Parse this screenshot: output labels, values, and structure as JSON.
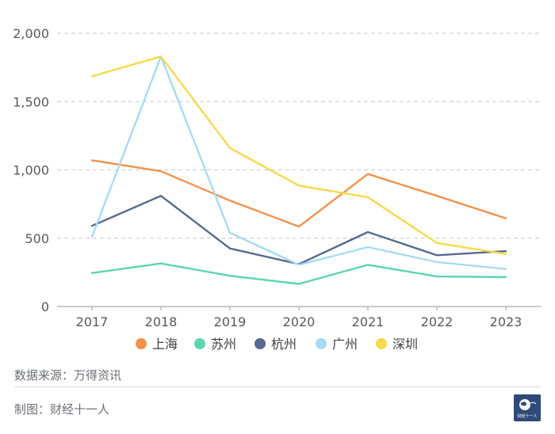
{
  "chart_data": {
    "type": "line",
    "x": [
      "2017",
      "2018",
      "2019",
      "2020",
      "2021",
      "2022",
      "2023"
    ],
    "ylim": [
      0,
      2000
    ],
    "y_ticks": [
      "0",
      "500",
      "1,000",
      "1,500",
      "2,000"
    ],
    "y_tick_values": [
      0,
      500,
      1000,
      1500,
      2000
    ],
    "grid": true,
    "legend_position": "bottom",
    "series": [
      {
        "name": "上海",
        "color": "#f4924a",
        "values": [
          1070,
          990,
          775,
          585,
          970,
          810,
          645
        ]
      },
      {
        "name": "苏州",
        "color": "#5dd6aa",
        "values": [
          245,
          315,
          225,
          165,
          305,
          220,
          215
        ]
      },
      {
        "name": "杭州",
        "color": "#566a90",
        "values": [
          590,
          810,
          425,
          310,
          545,
          375,
          405
        ]
      },
      {
        "name": "广州",
        "color": "#a6dcf4",
        "values": [
          510,
          1830,
          540,
          305,
          435,
          325,
          275
        ]
      },
      {
        "name": "深圳",
        "color": "#f8d94a",
        "values": [
          1685,
          1830,
          1160,
          885,
          800,
          465,
          385
        ]
      }
    ]
  },
  "footer": {
    "source": "数据来源：万得资讯",
    "credit": "制图：财经十一人"
  },
  "logo": {
    "text": "财经十一人",
    "color": "#2e4a78"
  }
}
